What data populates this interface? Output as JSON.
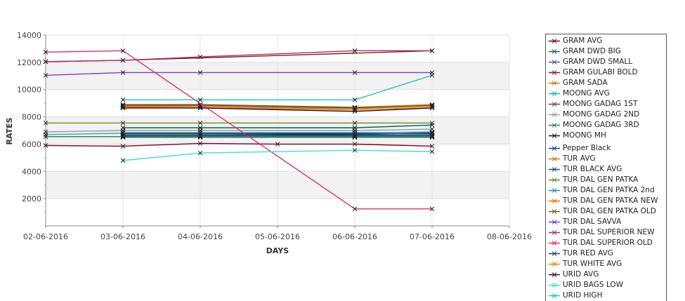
{
  "chart_data": {
    "type": "line",
    "xlabel": "DAYS",
    "ylabel": "RATES",
    "x": [
      "02-06-2016",
      "03-06-2016",
      "04-06-2016",
      "05-06-2016",
      "06-06-2016",
      "07-06-2016"
    ],
    "x_ticks": [
      "02-06-2016",
      "03-06-2016",
      "04-06-2016",
      "05-06-2016",
      "06-06-2016",
      "07-06-2016",
      "08-06-2016"
    ],
    "ylim": [
      0,
      14000
    ],
    "y_ticks": [
      2000,
      4000,
      6000,
      8000,
      10000,
      12000,
      14000
    ],
    "grid": true,
    "legend_position": "right",
    "series": [
      {
        "name": "GRAM AVG",
        "color": "#800020",
        "values": [
          5900,
          5850,
          6050,
          6000,
          6000,
          5850
        ]
      },
      {
        "name": "GRAM DWD BIG",
        "color": "#0f6b5c",
        "values": [
          null,
          6500,
          6500,
          null,
          6500,
          6500
        ]
      },
      {
        "name": "GRAM DWD SMALL",
        "color": "#4a5fa8",
        "values": [
          null,
          6600,
          6600,
          null,
          6600,
          6600
        ]
      },
      {
        "name": "GRAM GULABI BOLD",
        "color": "#8b1a1a",
        "values": [
          12050,
          12150,
          null,
          null,
          null,
          12850
        ]
      },
      {
        "name": "GRAM SADA",
        "color": "#cc7a00",
        "values": [
          null,
          8800,
          8850,
          null,
          8700,
          8900
        ]
      },
      {
        "name": "MOONG AVG",
        "color": "#20b2aa",
        "values": [
          6700,
          6800,
          6800,
          null,
          6800,
          6900
        ]
      },
      {
        "name": "MOONG GADAG 1ST",
        "color": "#6b4e2e",
        "values": [
          null,
          8900,
          8900,
          null,
          8700,
          8800
        ]
      },
      {
        "name": "MOONG GADAG 2ND",
        "color": "#999999",
        "values": [
          6900,
          7000,
          7000,
          null,
          7000,
          7100
        ]
      },
      {
        "name": "MOONG GADAG 3RD",
        "color": "#2e8b57",
        "values": [
          6550,
          6550,
          6550,
          null,
          6550,
          6550
        ]
      },
      {
        "name": "MOONG MH",
        "color": "#1a1a1a",
        "values": [
          null,
          6750,
          6750,
          null,
          6750,
          6750
        ]
      },
      {
        "name": "Pepper Black",
        "color": "#1f3f8f",
        "values": [
          null,
          6650,
          6650,
          null,
          6650,
          6650
        ]
      },
      {
        "name": "TUR AVG",
        "color": "#b8860b",
        "values": [
          null,
          8700,
          8700,
          null,
          8600,
          8800
        ]
      },
      {
        "name": "TUR BLACK AVG",
        "color": "#006060",
        "values": [
          null,
          7200,
          7200,
          null,
          7200,
          7400
        ]
      },
      {
        "name": "TUR DAL GEN PATKA",
        "color": "#6b8e23",
        "values": [
          7550,
          7550,
          7550,
          null,
          7550,
          7550
        ]
      },
      {
        "name": "TUR DAL GEN PATKA 2nd",
        "color": "#1e90b0",
        "values": [
          null,
          6850,
          6850,
          null,
          6850,
          6850
        ]
      },
      {
        "name": "TUR DAL GEN PATKA NEW",
        "color": "#ff6a00",
        "values": [
          null,
          8750,
          8800,
          null,
          8650,
          8850
        ]
      },
      {
        "name": "TUR DAL GEN PATKA OLD",
        "color": "#8b5a2b",
        "values": [
          null,
          8850,
          8850,
          null,
          8650,
          8850
        ]
      },
      {
        "name": "TUR DAL SAVVA",
        "color": "#7b3fc8",
        "values": [
          11050,
          11250,
          11250,
          null,
          11250,
          11250
        ]
      },
      {
        "name": "TUR DAL SUPERIOR NEW",
        "color": "#a0306a",
        "values": [
          12050,
          12150,
          12400,
          null,
          12850,
          12850
        ]
      },
      {
        "name": "TUR DAL SUPERIOR OLD",
        "color": "#e0306a",
        "values": [
          12750,
          12850,
          null,
          null,
          1250,
          1250
        ]
      },
      {
        "name": "TUR RED AVG",
        "color": "#283c8c",
        "values": [
          null,
          6600,
          6650,
          null,
          6700,
          6800
        ]
      },
      {
        "name": "TUR WHITE AVG",
        "color": "#e08a00",
        "values": [
          null,
          8650,
          8650,
          null,
          8500,
          8700
        ]
      },
      {
        "name": "URID AVG",
        "color": "#3a0a40",
        "values": [
          null,
          8650,
          8650,
          null,
          8400,
          8650
        ]
      },
      {
        "name": "URID BAGS LOW",
        "color": "#40e0d0",
        "values": [
          null,
          4800,
          5350,
          null,
          5550,
          5450
        ]
      },
      {
        "name": "URID HIGH",
        "color": "#1ec8b4",
        "values": [
          null,
          9250,
          9250,
          null,
          9250,
          11050
        ]
      }
    ]
  }
}
